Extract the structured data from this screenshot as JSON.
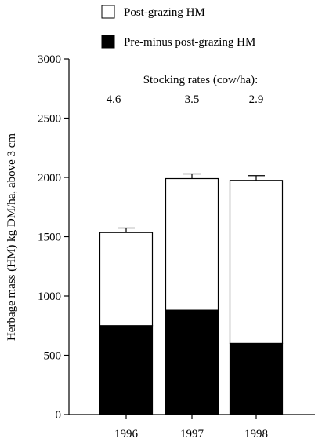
{
  "chart_data": {
    "type": "bar",
    "stacked": true,
    "categories": [
      "1996",
      "1997",
      "1998"
    ],
    "series": [
      {
        "name": "Pre-minus post-grazing HM",
        "values": [
          750,
          880,
          600
        ],
        "errors": [
          40,
          45,
          45
        ],
        "color": "#000000"
      },
      {
        "name": "Post-grazing HM",
        "values": [
          785,
          1110,
          1375
        ],
        "errors": [
          38,
          40,
          40
        ],
        "color": "#ffffff"
      }
    ],
    "annotation_title": "Stocking rates (cow/ha):",
    "annotation_values": [
      "4.6",
      "3.5",
      "2.9"
    ],
    "ylabel": "Herbage mass (HM) kg DM/ha, above 3 cm",
    "xlabel": "",
    "ylim": [
      0,
      3000
    ],
    "yticks": [
      0,
      500,
      1000,
      1500,
      2000,
      2500,
      3000
    ],
    "legend_position": "top",
    "grid": false
  }
}
